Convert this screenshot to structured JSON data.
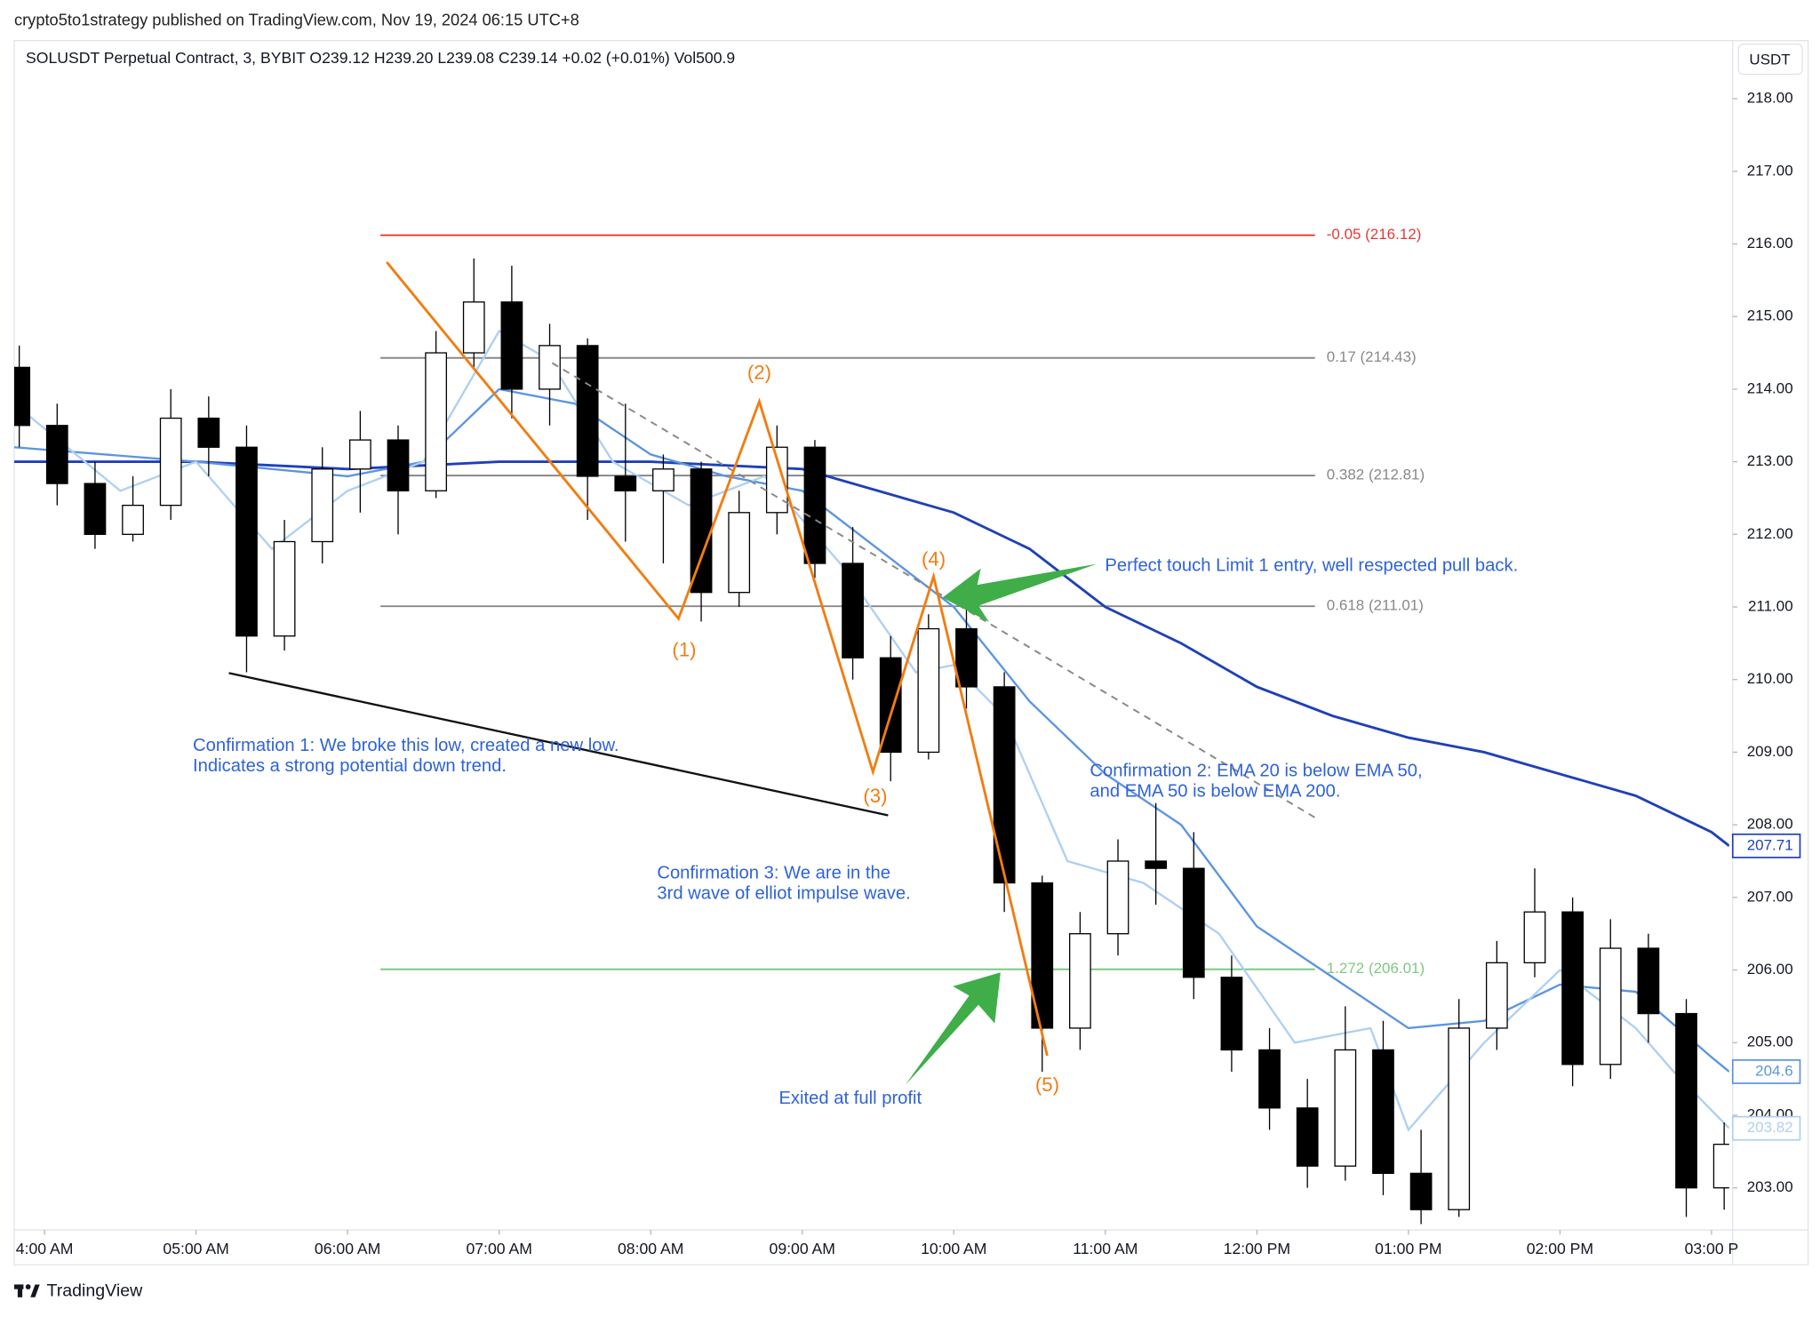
{
  "header": {
    "publisher": "crypto5to1strategy published on TradingView.com, Nov 19, 2024 06:15 UTC+8",
    "footer": "TradingView"
  },
  "chart_data": {
    "type": "candlestick",
    "title": "SOLUSDT Perpetual Contract, 3, BYBIT  O239.12  H239.20  L239.08  C239.14  +0.02 (+0.01%)  Vol500.9",
    "currency": "USDT",
    "x": [
      230,
      245,
      260,
      275,
      290,
      305,
      320,
      335,
      350,
      365,
      380,
      395,
      410,
      425,
      440,
      455,
      470,
      485,
      500,
      515,
      530,
      545,
      560,
      575,
      590,
      605,
      620,
      635,
      650,
      665,
      680,
      695,
      710,
      725,
      740,
      755,
      770,
      785,
      800,
      815,
      830,
      845,
      860,
      875,
      890,
      905
    ],
    "open": [
      214.3,
      213.5,
      212.7,
      212.0,
      212.4,
      213.6,
      213.2,
      210.6,
      211.9,
      212.9,
      213.3,
      212.6,
      214.5,
      215.2,
      214.0,
      214.6,
      212.8,
      212.6,
      212.9,
      211.2,
      212.3,
      213.2,
      211.6,
      210.3,
      209.0,
      210.7,
      209.9,
      207.2,
      205.2,
      206.5,
      207.5,
      207.4,
      205.9,
      204.9,
      204.1,
      203.3,
      204.9,
      203.2,
      202.7,
      205.2,
      206.1,
      206.8,
      204.7,
      206.3,
      205.4,
      203.0
    ],
    "high": [
      214.6,
      213.8,
      213.0,
      212.8,
      214.0,
      213.9,
      213.5,
      212.2,
      213.2,
      213.7,
      213.5,
      214.8,
      215.8,
      215.7,
      214.9,
      214.7,
      213.8,
      213.1,
      213.0,
      212.6,
      213.5,
      213.3,
      212.1,
      210.6,
      210.9,
      211.0,
      210.1,
      207.3,
      206.8,
      207.8,
      208.3,
      207.9,
      206.2,
      205.2,
      204.5,
      205.5,
      205.3,
      203.8,
      205.6,
      206.4,
      207.4,
      207.0,
      206.7,
      206.5,
      205.6,
      203.9
    ],
    "low": [
      213.2,
      212.4,
      211.8,
      211.9,
      212.2,
      212.8,
      210.1,
      210.4,
      211.6,
      212.3,
      212.0,
      212.5,
      214.3,
      213.6,
      213.5,
      212.2,
      211.9,
      211.6,
      210.8,
      211.0,
      212.0,
      211.4,
      210.0,
      208.6,
      208.9,
      209.6,
      206.8,
      204.6,
      204.9,
      206.2,
      206.9,
      205.6,
      204.6,
      203.8,
      203.0,
      203.1,
      202.9,
      202.5,
      202.6,
      204.9,
      205.9,
      204.4,
      204.5,
      205.0,
      202.6,
      202.7
    ],
    "close": [
      213.5,
      212.7,
      212.0,
      212.4,
      213.6,
      213.2,
      210.6,
      211.9,
      212.9,
      213.3,
      212.6,
      214.5,
      215.2,
      214.0,
      214.6,
      212.8,
      212.6,
      212.9,
      211.2,
      212.3,
      213.2,
      211.6,
      210.3,
      209.0,
      210.7,
      209.9,
      207.2,
      205.2,
      206.5,
      207.5,
      207.4,
      205.9,
      204.9,
      204.1,
      203.3,
      204.9,
      203.2,
      202.7,
      205.2,
      206.1,
      206.8,
      204.7,
      206.3,
      205.4,
      203.0,
      203.6
    ],
    "up_color": "#ffffff",
    "down_color": "#000000",
    "series": [
      {
        "color": "#1e40b8",
        "x": [
          228,
          300,
          360,
          420,
          480,
          540,
          600,
          630,
          660,
          690,
          720,
          750,
          780,
          810,
          840,
          870,
          900,
          907
        ],
        "values": [
          213.0,
          213.0,
          212.9,
          213.0,
          213.0,
          212.9,
          212.3,
          211.8,
          211.0,
          210.5,
          209.9,
          209.5,
          209.2,
          209.0,
          208.7,
          208.4,
          207.9,
          207.71
        ]
      },
      {
        "color": "#5b95e0",
        "x": [
          228,
          300,
          360,
          390,
          420,
          450,
          480,
          510,
          540,
          570,
          600,
          630,
          660,
          690,
          720,
          750,
          780,
          810,
          840,
          870,
          900,
          907
        ],
        "values": [
          213.2,
          213.0,
          212.8,
          213.0,
          214.0,
          213.8,
          213.1,
          212.8,
          212.6,
          211.8,
          211.0,
          209.7,
          208.7,
          208.0,
          206.6,
          205.9,
          205.2,
          205.3,
          205.8,
          205.7,
          204.8,
          204.6
        ]
      },
      {
        "color": "#aed0f2",
        "x": [
          228,
          270,
          300,
          330,
          360,
          390,
          420,
          440,
          465,
          495,
          525,
          555,
          585,
          600,
          620,
          645,
          675,
          705,
          735,
          765,
          780,
          810,
          840,
          870,
          885,
          907
        ],
        "values": [
          213.8,
          212.6,
          213.0,
          211.8,
          212.6,
          213.0,
          214.8,
          214.4,
          213.0,
          212.4,
          212.8,
          211.6,
          210.1,
          210.2,
          209.5,
          207.5,
          207.2,
          206.5,
          205.0,
          205.2,
          203.8,
          205.0,
          206.0,
          205.2,
          204.6,
          203.82
        ]
      }
    ],
    "fib": {
      "x": [
        373,
        743
      ],
      "levels": [
        {
          "value": 216.12,
          "label": "-0.05 (216.12)",
          "color": "#e53935"
        },
        {
          "value": 214.43,
          "label": "0.17 (214.43)",
          "color": "#888888"
        },
        {
          "value": 212.81,
          "label": "0.382 (212.81)",
          "color": "#888888"
        },
        {
          "value": 211.01,
          "label": "0.618 (211.01)",
          "color": "#888888"
        },
        {
          "value": 206.01,
          "label": "1.272 (206.01)",
          "color": "#81c784"
        }
      ]
    },
    "waves": {
      "color": "#f07d12",
      "x": [
        375.5,
        491,
        523,
        568,
        592,
        637
      ],
      "y": [
        215.75,
        210.84,
        213.83,
        208.73,
        211.42,
        204.82
      ],
      "labels": [
        null,
        "(1)",
        "(2)",
        "(3)",
        "(4)",
        "(5)"
      ]
    },
    "trend_line": {
      "color": "#111111",
      "x": [
        313,
        574
      ],
      "y": [
        210.09,
        208.13
      ]
    },
    "dashed_line": {
      "color": "#888888",
      "x": [
        441,
        743
      ],
      "y": [
        214.36,
        208.1
      ]
    },
    "annotations": [
      {
        "lines": [
          "Perfect touch Limit 1 entry, well respected pull back."
        ]
      },
      {
        "lines": [
          "Confirmation 1: We broke this low, created a new low.",
          "Indicates a strong potential down trend."
        ]
      },
      {
        "lines": [
          "Confirmation 2: EMA 20 is below EMA 50,",
          "and EMA 50 is below EMA 200."
        ]
      },
      {
        "lines": [
          "Confirmation 3: We are in the",
          "3rd wave of elliot impulse wave."
        ]
      },
      {
        "lines": [
          "Exited at full profit"
        ]
      }
    ],
    "annotation_color": "#2f63d6",
    "xlim": [
      228,
      907
    ],
    "ylim": [
      202.42,
      218.8
    ],
    "xticks": [
      {
        "value": 240,
        "label": "4:00 AM"
      },
      {
        "value": 300,
        "label": "05:00 AM"
      },
      {
        "value": 360,
        "label": "06:00 AM"
      },
      {
        "value": 420,
        "label": "07:00 AM"
      },
      {
        "value": 480,
        "label": "08:00 AM"
      },
      {
        "value": 540,
        "label": "09:00 AM"
      },
      {
        "value": 600,
        "label": "10:00 AM"
      },
      {
        "value": 660,
        "label": "11:00 AM"
      },
      {
        "value": 720,
        "label": "12:00 PM"
      },
      {
        "value": 780,
        "label": "01:00 PM"
      },
      {
        "value": 840,
        "label": "02:00 PM"
      },
      {
        "value": 900,
        "label": "03:00 P"
      }
    ],
    "yticks": [
      {
        "value": 203,
        "label": "203.00"
      },
      {
        "value": 204,
        "label": "204.00"
      },
      {
        "value": 205,
        "label": "205.00"
      },
      {
        "value": 206,
        "label": "206.00"
      },
      {
        "value": 207,
        "label": "207.00"
      },
      {
        "value": 208,
        "label": "208.00"
      },
      {
        "value": 209,
        "label": "209.00"
      },
      {
        "value": 210,
        "label": "210.00"
      },
      {
        "value": 211,
        "label": "211.00"
      },
      {
        "value": 212,
        "label": "212.00"
      },
      {
        "value": 213,
        "label": "213.00"
      },
      {
        "value": 214,
        "label": "214.00"
      },
      {
        "value": 215,
        "label": "215.00"
      },
      {
        "value": 216,
        "label": "216.00"
      },
      {
        "value": 217,
        "label": "217.00"
      },
      {
        "value": 218,
        "label": "218.00"
      }
    ],
    "grid": false
  }
}
